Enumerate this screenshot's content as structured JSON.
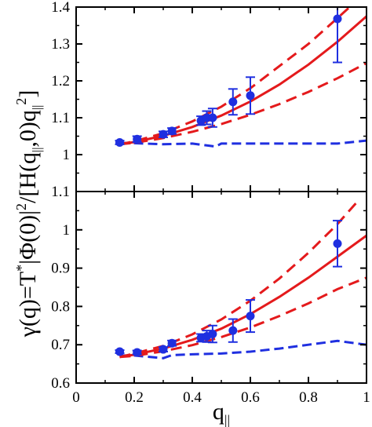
{
  "chart_data": [
    {
      "type": "scatter",
      "panel": "top",
      "xlim": [
        0,
        1
      ],
      "ylim": [
        0.9,
        1.4
      ],
      "yticks": [
        1.0,
        1.1,
        1.2,
        1.3,
        1.4
      ],
      "ytick_labels": [
        "1",
        "1.1",
        "1.2",
        "1.3",
        "1.4"
      ],
      "xticks": [
        0,
        0.2,
        0.4,
        0.6,
        0.8,
        1.0
      ],
      "show_x_tick_labels": false,
      "grid": false,
      "colors": {
        "points": "#1f2fe0",
        "fit": "#e41a1c",
        "dashed_blue": "#1f2fe0"
      },
      "points": [
        {
          "x": 0.15,
          "y": 1.033,
          "err": 0.005
        },
        {
          "x": 0.21,
          "y": 1.042,
          "err": 0.008
        },
        {
          "x": 0.3,
          "y": 1.055,
          "err": 0.008
        },
        {
          "x": 0.33,
          "y": 1.064,
          "err": 0.008
        },
        {
          "x": 0.43,
          "y": 1.092,
          "err": 0.012
        },
        {
          "x": 0.45,
          "y": 1.1,
          "err": 0.018
        },
        {
          "x": 0.47,
          "y": 1.1,
          "err": 0.025
        },
        {
          "x": 0.54,
          "y": 1.143,
          "err": 0.035
        },
        {
          "x": 0.6,
          "y": 1.16,
          "err": 0.05
        },
        {
          "x": 0.9,
          "y": 1.368,
          "err": 0.118
        }
      ],
      "fit_solid": {
        "x": [
          0.15,
          0.2,
          0.3,
          0.4,
          0.5,
          0.6,
          0.7,
          0.8,
          0.9,
          1.0
        ],
        "y": [
          1.028,
          1.034,
          1.051,
          1.075,
          1.106,
          1.144,
          1.19,
          1.244,
          1.306,
          1.375
        ]
      },
      "fit_upper": {
        "x": [
          0.15,
          0.2,
          0.3,
          0.4,
          0.5,
          0.6,
          0.7,
          0.8,
          0.9,
          0.97
        ],
        "y": [
          1.028,
          1.036,
          1.058,
          1.09,
          1.13,
          1.18,
          1.24,
          1.3,
          1.37,
          1.42
        ]
      },
      "fit_lower": {
        "x": [
          0.15,
          0.2,
          0.3,
          0.4,
          0.5,
          0.6,
          0.7,
          0.8,
          0.9,
          1.0
        ],
        "y": [
          1.028,
          1.032,
          1.045,
          1.062,
          1.083,
          1.108,
          1.137,
          1.17,
          1.207,
          1.248
        ]
      },
      "dashed_blue": {
        "x": [
          0.15,
          0.2,
          0.3,
          0.4,
          0.45,
          0.48,
          0.5,
          0.55,
          0.6,
          0.7,
          0.8,
          0.9,
          1.0
        ],
        "y": [
          1.032,
          1.031,
          1.028,
          1.03,
          1.025,
          1.022,
          1.03,
          1.03,
          1.03,
          1.03,
          1.03,
          1.03,
          1.038
        ]
      }
    },
    {
      "type": "scatter",
      "panel": "bottom",
      "xlim": [
        0,
        1
      ],
      "ylim": [
        0.6,
        1.1
      ],
      "yticks": [
        0.6,
        0.7,
        0.8,
        0.9,
        1.0,
        1.1
      ],
      "ytick_labels": [
        "0.6",
        "0.7",
        "0.8",
        "0.9",
        "1",
        "1.1"
      ],
      "xticks": [
        0,
        0.2,
        0.4,
        0.6,
        0.8,
        1.0
      ],
      "xtick_labels": [
        "0",
        "0.2",
        "0.4",
        "0.6",
        "0.8",
        "1"
      ],
      "show_x_tick_labels": true,
      "grid": false,
      "colors": {
        "points": "#1f2fe0",
        "fit": "#e41a1c",
        "dashed_blue": "#1f2fe0"
      },
      "points": [
        {
          "x": 0.15,
          "y": 0.682,
          "err": 0.004
        },
        {
          "x": 0.21,
          "y": 0.68,
          "err": 0.005
        },
        {
          "x": 0.3,
          "y": 0.688,
          "err": 0.006
        },
        {
          "x": 0.33,
          "y": 0.704,
          "err": 0.007
        },
        {
          "x": 0.43,
          "y": 0.718,
          "err": 0.01
        },
        {
          "x": 0.45,
          "y": 0.722,
          "err": 0.015
        },
        {
          "x": 0.47,
          "y": 0.728,
          "err": 0.022
        },
        {
          "x": 0.54,
          "y": 0.737,
          "err": 0.03
        },
        {
          "x": 0.6,
          "y": 0.775,
          "err": 0.042
        },
        {
          "x": 0.9,
          "y": 0.964,
          "err": 0.06
        }
      ],
      "fit_solid": {
        "x": [
          0.15,
          0.2,
          0.3,
          0.4,
          0.5,
          0.6,
          0.7,
          0.8,
          0.9,
          1.0
        ],
        "y": [
          0.668,
          0.674,
          0.69,
          0.713,
          0.742,
          0.78,
          0.825,
          0.875,
          0.93,
          0.985
        ]
      },
      "fit_upper": {
        "x": [
          0.15,
          0.2,
          0.3,
          0.4,
          0.5,
          0.6,
          0.7,
          0.8,
          0.9,
          0.97
        ],
        "y": [
          0.668,
          0.677,
          0.697,
          0.727,
          0.766,
          0.815,
          0.873,
          0.94,
          1.015,
          1.075
        ]
      },
      "fit_lower": {
        "x": [
          0.15,
          0.2,
          0.3,
          0.4,
          0.5,
          0.6,
          0.7,
          0.8,
          0.9,
          1.0
        ],
        "y": [
          0.668,
          0.671,
          0.683,
          0.699,
          0.72,
          0.745,
          0.775,
          0.808,
          0.845,
          0.875
        ]
      },
      "dashed_blue": {
        "x": [
          0.15,
          0.2,
          0.3,
          0.33,
          0.4,
          0.5,
          0.6,
          0.7,
          0.8,
          0.9,
          1.0
        ],
        "y": [
          0.672,
          0.672,
          0.665,
          0.673,
          0.675,
          0.677,
          0.682,
          0.69,
          0.7,
          0.71,
          0.7
        ]
      }
    }
  ],
  "axis_titles": {
    "x": "q||",
    "y": "γ(q)=T*|Φ(0)|2/[H(q||,0)q||2]"
  }
}
